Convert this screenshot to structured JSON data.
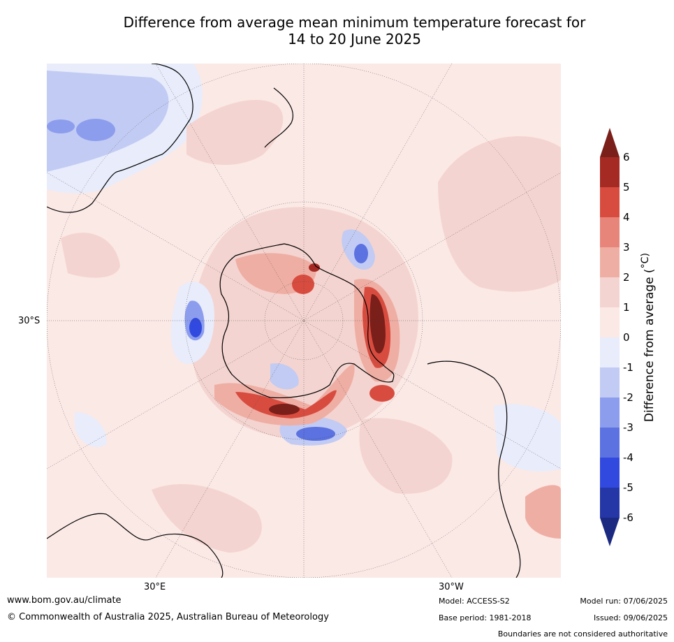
{
  "title": {
    "line1": "Difference from average mean minimum temperature forecast for",
    "line2": "14 to 20 June 2025"
  },
  "map": {
    "projection": "south-polar-stereographic",
    "lat_label": "30°S",
    "lon_labels": [
      "30°E",
      "30°W"
    ],
    "land_outline_color": "#000000",
    "background_class_color": "#fbe9e6"
  },
  "colorbar": {
    "label": "Difference from average (",
    "label_unit": "°C)",
    "ticks": [
      "6",
      "5",
      "4",
      "3",
      "2",
      "1",
      "0",
      "-1",
      "-2",
      "-3",
      "-4",
      "-5",
      "-6"
    ],
    "bins": [
      {
        "range": ">6",
        "color": "#7a1f1a"
      },
      {
        "range": "5 to 6",
        "color": "#a52a24"
      },
      {
        "range": "4 to 5",
        "color": "#d84c40"
      },
      {
        "range": "3 to 4",
        "color": "#e8857a"
      },
      {
        "range": "2 to 3",
        "color": "#efaea4"
      },
      {
        "range": "1 to 2",
        "color": "#f4d4d0"
      },
      {
        "range": "0 to 1",
        "color": "#fbe9e6"
      },
      {
        "range": "-1 to 0",
        "color": "#e8ecfb"
      },
      {
        "range": "-2 to -1",
        "color": "#c2cbf3"
      },
      {
        "range": "-3 to -2",
        "color": "#8d9ded"
      },
      {
        "range": "-4 to -3",
        "color": "#5b72e0"
      },
      {
        "range": "-5 to -4",
        "color": "#3149df"
      },
      {
        "range": "-6 to -5",
        "color": "#2537a6"
      },
      {
        "range": "<-6",
        "color": "#1b2a80"
      }
    ]
  },
  "footer": {
    "website": "www.bom.gov.au/climate",
    "copyright": "© Commonwealth of Australia 2025, Australian Bureau of Meteorology",
    "model": "Model: ACCESS-S2",
    "base_period": "Base period: 1981-2018",
    "model_run": "Model run: 07/06/2025",
    "issued": "Issued: 09/06/2025",
    "disclaimer": "Boundaries are not considered authoritative"
  }
}
